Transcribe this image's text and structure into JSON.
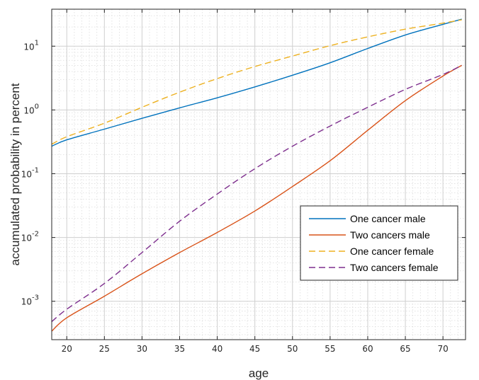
{
  "chart_data": {
    "type": "line",
    "xlabel": "age",
    "ylabel": "accumulated probability in percent",
    "xlim": [
      18,
      73
    ],
    "ylim": [
      0.00025,
      38
    ],
    "yscale": "log",
    "grid": true,
    "legend_position": "bottom-right",
    "x_ticks": [
      "20",
      "25",
      "30",
      "35",
      "40",
      "45",
      "50",
      "55",
      "60",
      "65",
      "70"
    ],
    "y_ticks": [
      {
        "base": "10",
        "exp": "-3"
      },
      {
        "base": "10",
        "exp": "-2"
      },
      {
        "base": "10",
        "exp": "-1"
      },
      {
        "base": "10",
        "exp": "0"
      },
      {
        "base": "10",
        "exp": "1"
      }
    ],
    "series": [
      {
        "name": "One cancer male",
        "color": "#0072BD",
        "style": "solid",
        "points": [
          [
            18,
            0.27
          ],
          [
            20,
            0.34
          ],
          [
            25,
            0.5
          ],
          [
            30,
            0.74
          ],
          [
            35,
            1.08
          ],
          [
            40,
            1.55
          ],
          [
            45,
            2.3
          ],
          [
            50,
            3.5
          ],
          [
            55,
            5.5
          ],
          [
            60,
            9.2
          ],
          [
            65,
            15
          ],
          [
            70,
            22
          ],
          [
            72.5,
            26.5
          ]
        ]
      },
      {
        "name": "Two cancers male",
        "color": "#D95319",
        "style": "solid",
        "points": [
          [
            18,
            0.00034
          ],
          [
            20,
            0.00055
          ],
          [
            25,
            0.0012
          ],
          [
            30,
            0.0027
          ],
          [
            35,
            0.0058
          ],
          [
            40,
            0.012
          ],
          [
            45,
            0.026
          ],
          [
            50,
            0.063
          ],
          [
            55,
            0.16
          ],
          [
            60,
            0.48
          ],
          [
            65,
            1.4
          ],
          [
            70,
            3.4
          ],
          [
            72.5,
            5.0
          ]
        ]
      },
      {
        "name": "One cancer female",
        "color": "#EDB120",
        "style": "dashed",
        "points": [
          [
            18,
            0.29
          ],
          [
            20,
            0.38
          ],
          [
            25,
            0.62
          ],
          [
            30,
            1.1
          ],
          [
            35,
            1.9
          ],
          [
            40,
            3.1
          ],
          [
            45,
            4.8
          ],
          [
            50,
            7.0
          ],
          [
            55,
            10.2
          ],
          [
            60,
            14
          ],
          [
            65,
            18.5
          ],
          [
            70,
            23
          ],
          [
            72.5,
            26
          ]
        ]
      },
      {
        "name": "Two cancers female",
        "color": "#7E2F8E",
        "style": "dashed",
        "points": [
          [
            18,
            0.00048
          ],
          [
            20,
            0.00075
          ],
          [
            25,
            0.0019
          ],
          [
            30,
            0.0058
          ],
          [
            35,
            0.018
          ],
          [
            40,
            0.048
          ],
          [
            45,
            0.12
          ],
          [
            50,
            0.27
          ],
          [
            55,
            0.56
          ],
          [
            60,
            1.1
          ],
          [
            65,
            2.1
          ],
          [
            70,
            3.6
          ],
          [
            72.5,
            5.0
          ]
        ]
      }
    ]
  }
}
